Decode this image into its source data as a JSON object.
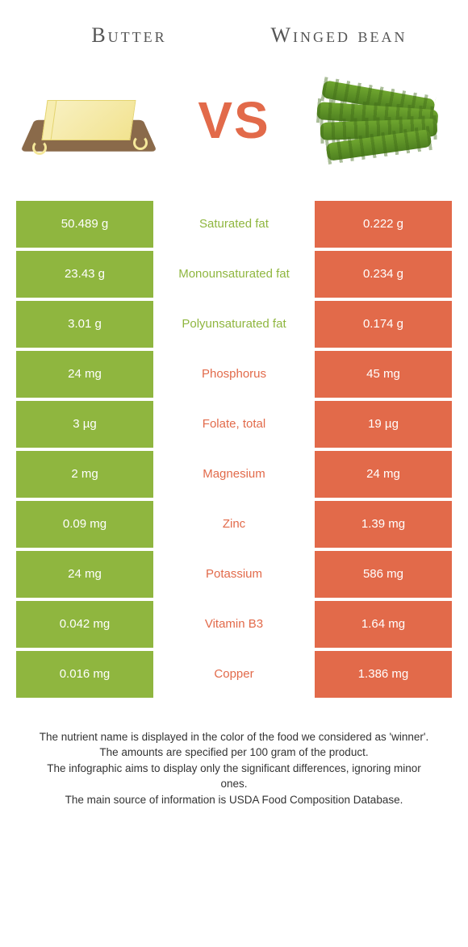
{
  "colors": {
    "left": "#8fb63f",
    "right": "#e26a4a",
    "vs": "#e26a4a"
  },
  "header": {
    "left_title": "Butter",
    "right_title": "Winged bean",
    "vs": "VS"
  },
  "rows": [
    {
      "left": "50.489 g",
      "label": "Saturated fat",
      "right": "0.222 g",
      "winner": "left"
    },
    {
      "left": "23.43 g",
      "label": "Monounsaturated fat",
      "right": "0.234 g",
      "winner": "left"
    },
    {
      "left": "3.01 g",
      "label": "Polyunsaturated fat",
      "right": "0.174 g",
      "winner": "left"
    },
    {
      "left": "24 mg",
      "label": "Phosphorus",
      "right": "45 mg",
      "winner": "right"
    },
    {
      "left": "3 µg",
      "label": "Folate, total",
      "right": "19 µg",
      "winner": "right"
    },
    {
      "left": "2 mg",
      "label": "Magnesium",
      "right": "24 mg",
      "winner": "right"
    },
    {
      "left": "0.09 mg",
      "label": "Zinc",
      "right": "1.39 mg",
      "winner": "right"
    },
    {
      "left": "24 mg",
      "label": "Potassium",
      "right": "586 mg",
      "winner": "right"
    },
    {
      "left": "0.042 mg",
      "label": "Vitamin B3",
      "right": "1.64 mg",
      "winner": "right"
    },
    {
      "left": "0.016 mg",
      "label": "Copper",
      "right": "1.386 mg",
      "winner": "right"
    }
  ],
  "footer": {
    "line1": "The nutrient name is displayed in the color of the food we considered as 'winner'.",
    "line2": "The amounts are specified per 100 gram of the product.",
    "line3": "The infographic aims to display only the significant differences, ignoring minor ones.",
    "line4": "The main source of information is USDA Food Composition Database."
  }
}
